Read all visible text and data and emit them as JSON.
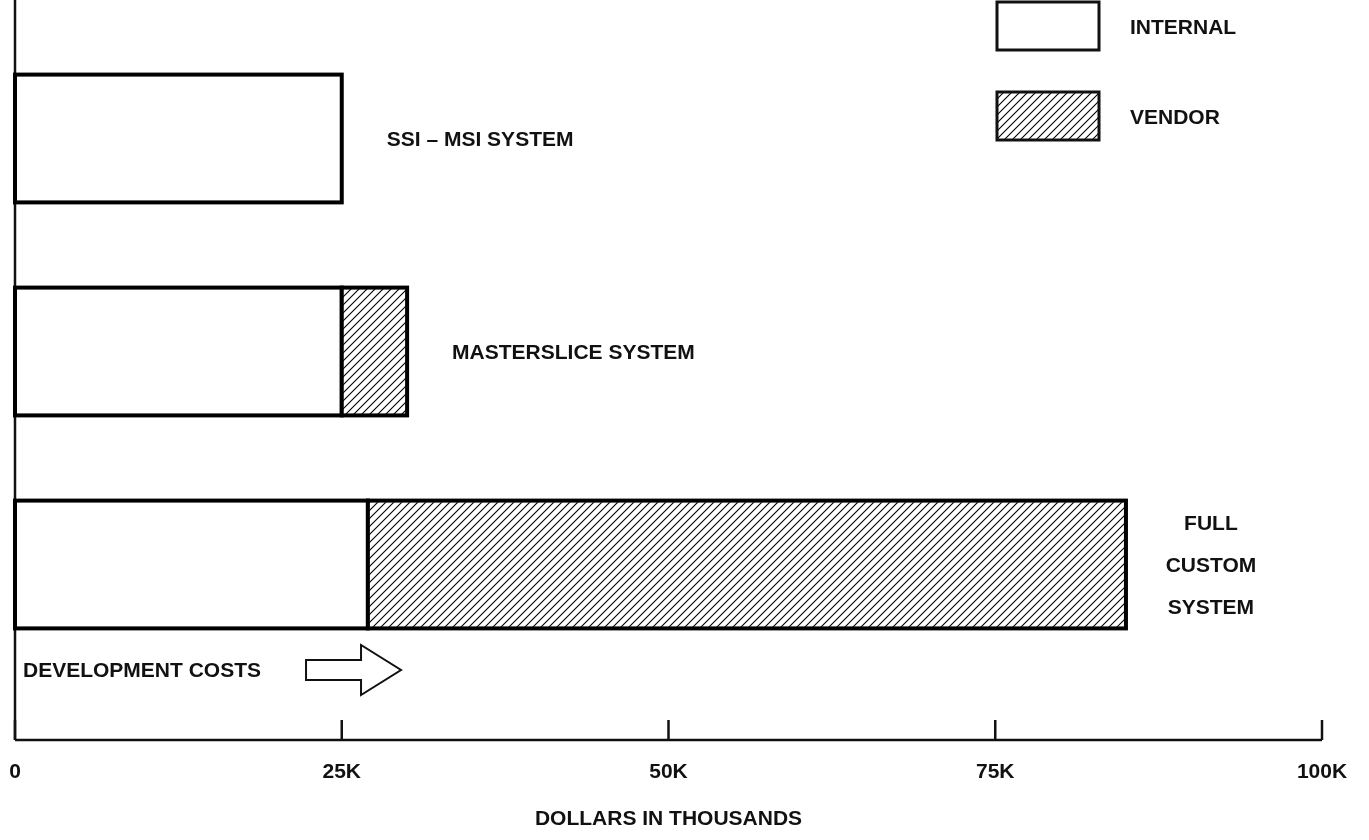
{
  "chart_data": {
    "type": "bar",
    "orientation": "horizontal",
    "stacked": true,
    "categories": [
      "SSI – MSI SYSTEM",
      "MASTERSLICE SYSTEM",
      "FULL CUSTOM SYSTEM"
    ],
    "series": [
      {
        "name": "INTERNAL",
        "color": "#ffffff",
        "values": [
          25,
          25,
          27
        ]
      },
      {
        "name": "VENDOR",
        "color": "#000000",
        "values": [
          null,
          5,
          58
        ]
      }
    ],
    "xlim": [
      0,
      100
    ],
    "xticks": [
      0,
      {
        "value": 25,
        "label": "25K"
      },
      {
        "value": 50,
        "label": "50K"
      },
      {
        "value": 75,
        "label": "75K"
      },
      {
        "value": 100,
        "label": "100K"
      }
    ],
    "xlabel": "DOLLARS IN THOUSANDS",
    "annotations": [
      "DEVELOPMENT COSTS"
    ],
    "legend": "top right",
    "grid": false
  }
}
